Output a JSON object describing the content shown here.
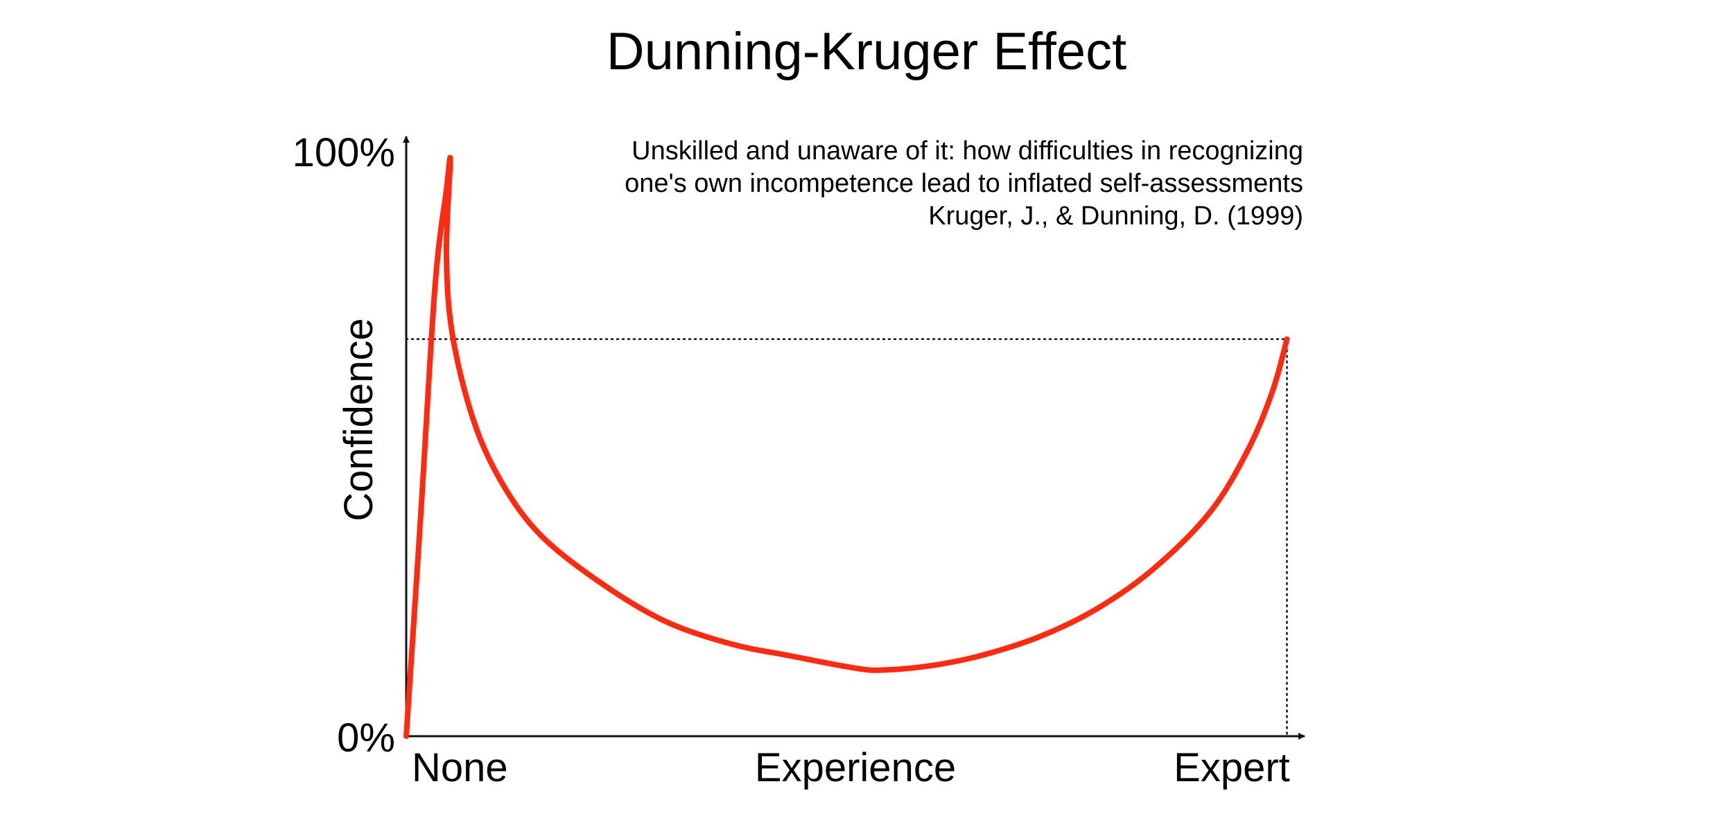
{
  "chart_data": {
    "type": "line",
    "title": "Dunning-Kruger Effect",
    "annotation": [
      "Unskilled and unaware of it: how difficulties in recognizing",
      "one's own incompetence lead to inflated self-assessments",
      "Kruger, J., & Dunning, D. (1999)"
    ],
    "xlabel": "Experience",
    "ylabel": "Confidence",
    "x_ticks": [
      "None",
      "Expert"
    ],
    "y_ticks": [
      "0%",
      "100%"
    ],
    "xlim": [
      0,
      100
    ],
    "ylim": [
      0,
      100
    ],
    "grid": false,
    "reference_lines": [
      {
        "kind": "horizontal",
        "y": 69
      },
      {
        "kind": "vertical",
        "x": 92
      }
    ],
    "series": [
      {
        "color": "#ff2a12",
        "x": [
          0,
          1.5,
          3,
          4.2,
          4.6,
          4.2,
          4.8,
          7,
          10,
          14,
          20,
          27,
          34,
          40,
          47,
          50,
          55,
          60,
          66,
          72,
          78,
          84,
          88,
          90.5,
          92
        ],
        "y": [
          0,
          38,
          78,
          95,
          100,
          84,
          70,
          55,
          44,
          35,
          27,
          20,
          16,
          14,
          11.8,
          11.5,
          12.3,
          14,
          17.2,
          22,
          29,
          39,
          50,
          60,
          69
        ]
      }
    ]
  }
}
